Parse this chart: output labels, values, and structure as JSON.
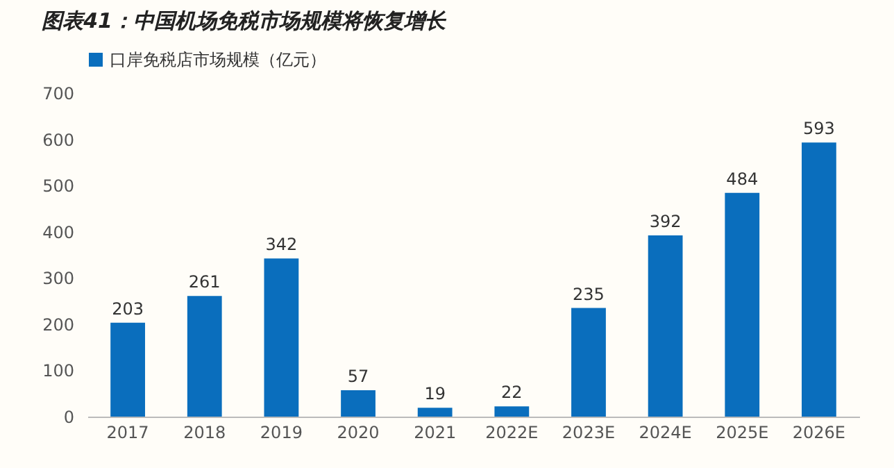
{
  "chart_data": {
    "type": "bar",
    "title": "图表41：中国机场免税市场规模将恢复增长",
    "categories": [
      "2017",
      "2018",
      "2019",
      "2020",
      "2021",
      "2022E",
      "2023E",
      "2024E",
      "2025E",
      "2026E"
    ],
    "series": [
      {
        "name": "口岸免税店市场规模（亿元）",
        "color": "#0a6ebd",
        "values": [
          203,
          261,
          342,
          57,
          19,
          22,
          235,
          392,
          484,
          593
        ]
      }
    ],
    "ylim": [
      0,
      700
    ],
    "yticks": [
      0,
      100,
      200,
      300,
      400,
      500,
      600,
      700
    ],
    "grid": false,
    "legend": "top",
    "data_labels": true
  }
}
